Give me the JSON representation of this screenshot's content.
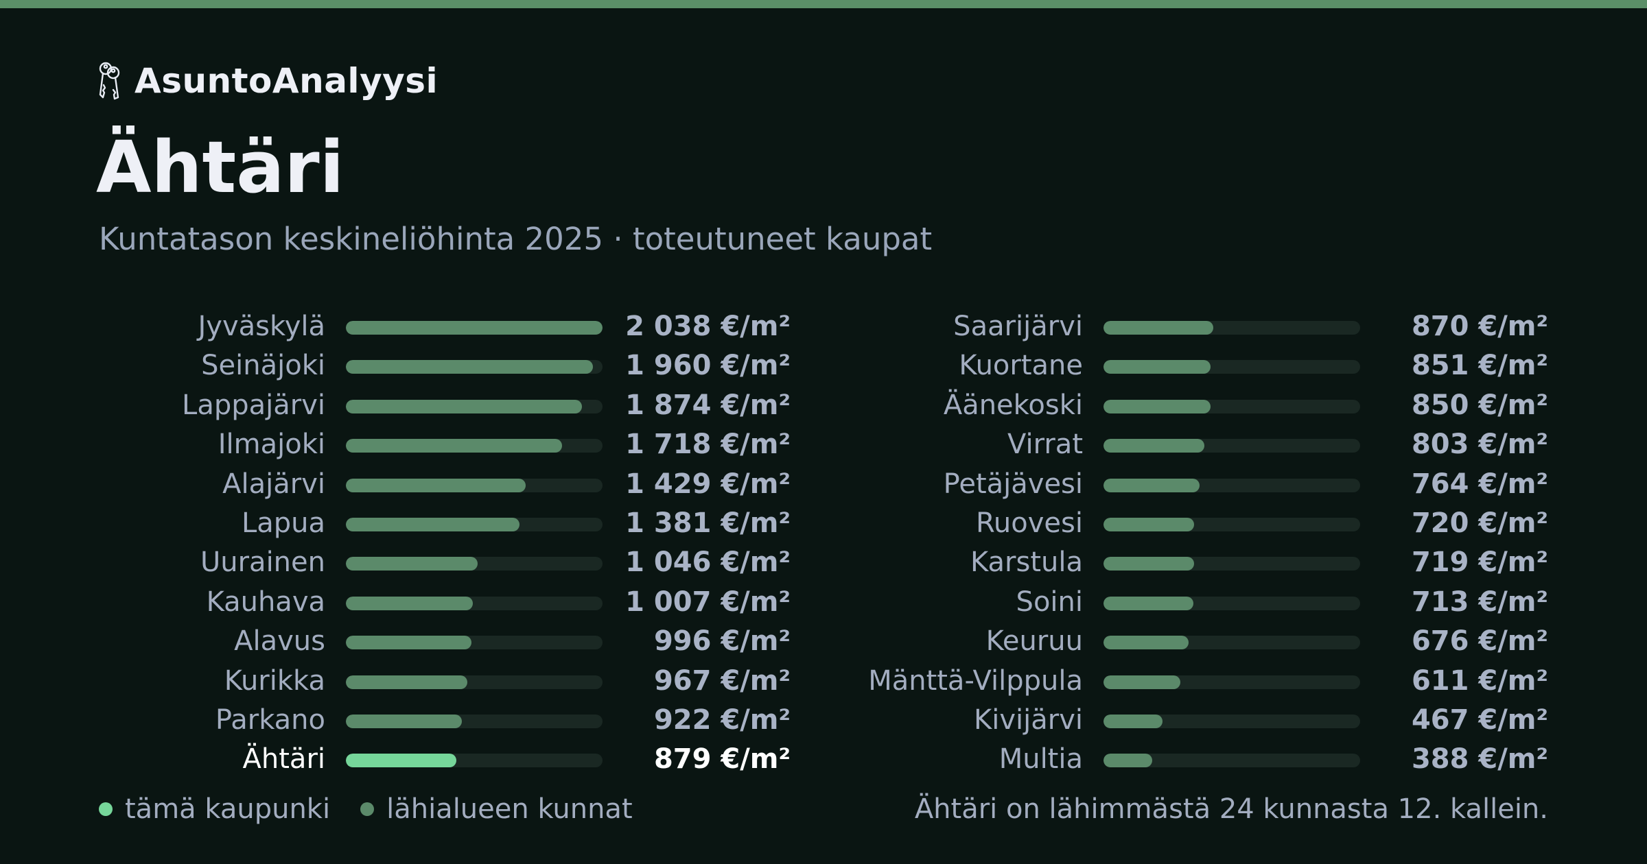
{
  "brand": {
    "name": "AsuntoAnalyysi",
    "logo_icon": "keys-icon"
  },
  "header": {
    "title": "Ähtäri",
    "subtitle": "Kuntatason keskineliöhinta 2025 · toteutuneet kaupat"
  },
  "colors": {
    "accent_bar": "#5b8f68",
    "highlight": "#76d69a",
    "neighbour": "#5b8a6a",
    "background": "#0a1512"
  },
  "chart_data": {
    "type": "bar",
    "orientation": "horizontal",
    "unit": "€/m²",
    "xlim": [
      0,
      2038
    ],
    "highlight": "Ähtäri",
    "rows": [
      {
        "name": "Jyväskylä",
        "value": 2038,
        "label": "2 038 €/m²"
      },
      {
        "name": "Seinäjoki",
        "value": 1960,
        "label": "1 960 €/m²"
      },
      {
        "name": "Lappajärvi",
        "value": 1874,
        "label": "1 874 €/m²"
      },
      {
        "name": "Ilmajoki",
        "value": 1718,
        "label": "1 718 €/m²"
      },
      {
        "name": "Alajärvi",
        "value": 1429,
        "label": "1 429 €/m²"
      },
      {
        "name": "Lapua",
        "value": 1381,
        "label": "1 381 €/m²"
      },
      {
        "name": "Uurainen",
        "value": 1046,
        "label": "1 046 €/m²"
      },
      {
        "name": "Kauhava",
        "value": 1007,
        "label": "1 007 €/m²"
      },
      {
        "name": "Alavus",
        "value": 996,
        "label": "996 €/m²"
      },
      {
        "name": "Kurikka",
        "value": 967,
        "label": "967 €/m²"
      },
      {
        "name": "Parkano",
        "value": 922,
        "label": "922 €/m²"
      },
      {
        "name": "Ähtäri",
        "value": 879,
        "label": "879 €/m²"
      },
      {
        "name": "Saarijärvi",
        "value": 870,
        "label": "870 €/m²"
      },
      {
        "name": "Kuortane",
        "value": 851,
        "label": "851 €/m²"
      },
      {
        "name": "Äänekoski",
        "value": 850,
        "label": "850 €/m²"
      },
      {
        "name": "Virrat",
        "value": 803,
        "label": "803 €/m²"
      },
      {
        "name": "Petäjävesi",
        "value": 764,
        "label": "764 €/m²"
      },
      {
        "name": "Ruovesi",
        "value": 720,
        "label": "720 €/m²"
      },
      {
        "name": "Karstula",
        "value": 719,
        "label": "719 €/m²"
      },
      {
        "name": "Soini",
        "value": 713,
        "label": "713 €/m²"
      },
      {
        "name": "Keuruu",
        "value": 676,
        "label": "676 €/m²"
      },
      {
        "name": "Mänttä-Vilppula",
        "value": 611,
        "label": "611 €/m²"
      },
      {
        "name": "Kivijärvi",
        "value": 467,
        "label": "467 €/m²"
      },
      {
        "name": "Multia",
        "value": 388,
        "label": "388 €/m²"
      }
    ]
  },
  "legend": {
    "this_city": "tämä kaupunki",
    "neighbours": "lähialueen kunnat"
  },
  "footnote": "Ähtäri on lähimmästä 24 kunnasta 12. kallein."
}
